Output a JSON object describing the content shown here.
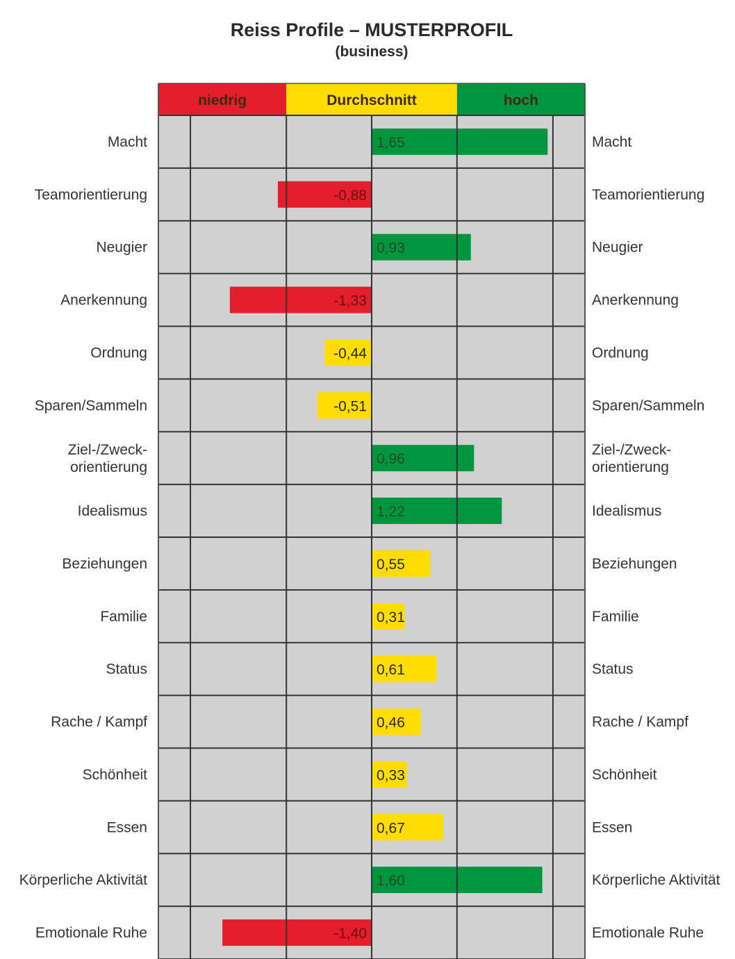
{
  "chart_data": {
    "type": "bar",
    "orientation": "horizontal",
    "title": "Reiss Profile – MUSTERPROFIL",
    "subtitle": "(business)",
    "xlim": [
      -2.0,
      2.0
    ],
    "bands": [
      {
        "label": "niedrig",
        "from": -2.0,
        "to": -0.8,
        "color": "#e31e2d"
      },
      {
        "label": "Durchschnitt",
        "from": -0.8,
        "to": 0.8,
        "color": "#ffdd00"
      },
      {
        "label": "hoch",
        "from": 0.8,
        "to": 2.0,
        "color": "#009640"
      }
    ],
    "gridlines": [
      -1.7,
      -0.8,
      0,
      0.8,
      1.7
    ],
    "categories": [
      [
        "Macht"
      ],
      [
        "Teamorientierung"
      ],
      [
        "Neugier"
      ],
      [
        "Anerkennung"
      ],
      [
        "Ordnung"
      ],
      [
        "Sparen/Sammeln"
      ],
      [
        "Ziel-/Zweck-",
        "orientierung"
      ],
      [
        "Idealismus"
      ],
      [
        "Beziehungen"
      ],
      [
        "Familie"
      ],
      [
        "Status"
      ],
      [
        "Rache / Kampf"
      ],
      [
        "Schönheit"
      ],
      [
        "Essen"
      ],
      [
        "Körperliche Aktivität"
      ],
      [
        "Emotionale Ruhe"
      ]
    ],
    "values": [
      1.65,
      -0.88,
      0.93,
      -1.33,
      -0.44,
      -0.51,
      0.96,
      1.22,
      0.55,
      0.31,
      0.61,
      0.46,
      0.33,
      0.67,
      1.6,
      -1.4
    ],
    "value_labels": [
      "1,65",
      "-0,88",
      "0,93",
      "-1,33",
      "-0,44",
      "-0,51",
      "0,96",
      "1,22",
      "0,55",
      "0,31",
      "0,61",
      "0,46",
      "0,33",
      "0,67",
      "1,60",
      "-1,40"
    ],
    "colors": {
      "low": "#e31e2d",
      "mid": "#ffdd00",
      "high": "#009640",
      "grid_bg": "#d1d1d1",
      "line": "#333333"
    }
  }
}
